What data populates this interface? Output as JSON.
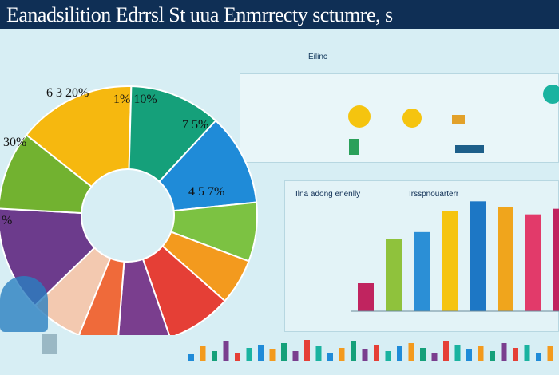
{
  "header": {
    "title": "Eanadsilition Edrrsl  St uua Enmrrecty sctumre, s"
  },
  "panels": {
    "top_right_caption": "Eilinc",
    "bar_header_left": "Ilna adong enenlly",
    "bar_header_right": "Irsspnouarterr"
  },
  "colors": {
    "title_bg": "#0f2f55",
    "page_bg": "#d7eef4",
    "accent_blue": "#1f8bd8",
    "accent_yellow": "#f5c40f"
  },
  "chart_data": [
    {
      "type": "pie",
      "title": "",
      "labels": [
        "6 3 20%",
        "1% 10%",
        "7 5%",
        "4 5 7%",
        "30%",
        "%"
      ],
      "slices": [
        {
          "value": 18,
          "color": "#f6b80f"
        },
        {
          "value": 14,
          "color": "#15a07a"
        },
        {
          "value": 14,
          "color": "#1f8bd8"
        },
        {
          "value": 9,
          "color": "#7cc242"
        },
        {
          "value": 7,
          "color": "#f39a1e"
        },
        {
          "value": 10,
          "color": "#e53f36"
        },
        {
          "value": 8,
          "color": "#7a3e8e"
        },
        {
          "value": 6,
          "color": "#ef6a3a"
        },
        {
          "value": 8,
          "color": "#f3c9b0"
        },
        {
          "value": 16,
          "color": "#6c3b8c"
        },
        {
          "value": 12,
          "color": "#72b230"
        }
      ]
    },
    {
      "type": "bar",
      "title": "",
      "categories": [
        "",
        "",
        "",
        "",
        "",
        "",
        "",
        ""
      ],
      "values": [
        30,
        78,
        85,
        108,
        118,
        112,
        104,
        110
      ],
      "colors": [
        "#c0245f",
        "#8fc23c",
        "#2b8fd6",
        "#f5c40f",
        "#1d77c5",
        "#f0a51c",
        "#e23a6a",
        "#c0245f"
      ],
      "ylim": [
        0,
        120
      ]
    },
    {
      "type": "bar",
      "title": "",
      "values": [
        4,
        9,
        6,
        12,
        5,
        8,
        10,
        7,
        11,
        6,
        13,
        9,
        5,
        8,
        12,
        7,
        10,
        6,
        9,
        11,
        8,
        5,
        12,
        10,
        7,
        9,
        6,
        11,
        8,
        10,
        5,
        9
      ],
      "ylim": [
        0,
        15
      ]
    }
  ]
}
